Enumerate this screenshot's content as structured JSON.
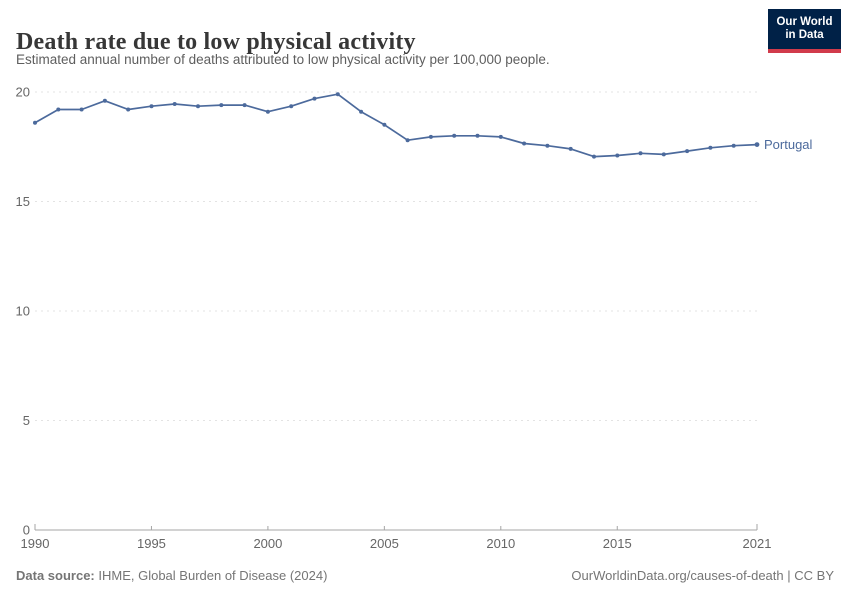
{
  "chart_data": {
    "type": "line",
    "title": "Death rate due to low physical activity",
    "subtitle": "Estimated annual number of deaths attributed to low physical activity per 100,000 people.",
    "x": [
      1990,
      1991,
      1992,
      1993,
      1994,
      1995,
      1996,
      1997,
      1998,
      1999,
      2000,
      2001,
      2002,
      2003,
      2004,
      2005,
      2006,
      2007,
      2008,
      2009,
      2010,
      2011,
      2012,
      2013,
      2014,
      2015,
      2016,
      2017,
      2018,
      2019,
      2020,
      2021
    ],
    "series": [
      {
        "name": "Portugal",
        "color": "#4C6A9C",
        "values": [
          18.6,
          19.2,
          19.2,
          19.6,
          19.2,
          19.35,
          19.45,
          19.35,
          19.4,
          19.4,
          19.1,
          19.35,
          19.7,
          19.9,
          19.1,
          18.5,
          17.8,
          17.95,
          18.0,
          18.0,
          17.95,
          17.65,
          17.55,
          17.4,
          17.05,
          17.1,
          17.2,
          17.15,
          17.3,
          17.45,
          17.55,
          17.6
        ]
      }
    ],
    "xlabel": "",
    "ylabel": "",
    "ylim": [
      0,
      20
    ],
    "yticks": [
      0,
      5,
      10,
      15,
      20
    ],
    "xticks": [
      1990,
      1995,
      2000,
      2005,
      2010,
      2015,
      2021
    ],
    "grid": "horizontal-dashed",
    "legend_position": "end-of-line-label"
  },
  "logo": {
    "line1": "Our World",
    "line2": "in Data"
  },
  "footer": {
    "source_label": "Data source:",
    "source_value": "IHME, Global Burden of Disease (2024)",
    "link": "OurWorldinData.org/causes-of-death",
    "separator": "|",
    "license": "CC BY"
  },
  "colors": {
    "line": "#4C6A9C",
    "grid": "#e3e3e3",
    "axis": "#a5a5a5",
    "tick_text": "#666666",
    "title_text": "#373737",
    "subtitle_text": "#5e5e5e",
    "footer_text": "#757575",
    "logo_bg": "#002147",
    "logo_accent": "#d13b4b"
  }
}
